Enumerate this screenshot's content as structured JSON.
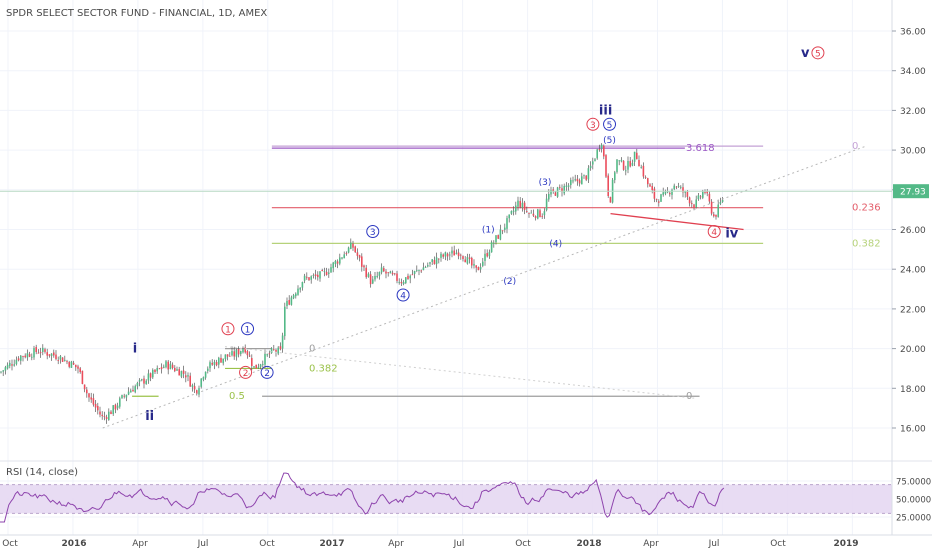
{
  "header": {
    "symbol_title": "SPDR SELECT SECTOR FUND - FINANCIAL, 1D, AMEX"
  },
  "rsi": {
    "title": "RSI (14, close)",
    "axis_ticks": [
      "75.0000",
      "50.0000",
      "25.0000"
    ],
    "levels": [
      75,
      50,
      25
    ],
    "band": [
      30,
      70
    ]
  },
  "chart_data": {
    "type": "candlestick",
    "title": "SPDR SELECT SECTOR FUND - FINANCIAL, 1D, AMEX",
    "x_ticks": [
      "Oct",
      "2016",
      "Apr",
      "Jul",
      "Oct",
      "2017",
      "Apr",
      "Jul",
      "Oct",
      "2018",
      "Apr",
      "Jul",
      "Oct",
      "2019"
    ],
    "y_ticks": [
      "36.00",
      "34.00",
      "32.00",
      "30.00",
      "28.00",
      "26.00",
      "24.00",
      "22.00",
      "20.00",
      "18.00",
      "16.00"
    ],
    "ylim": [
      15.0,
      37.0
    ],
    "last_price": "27.93",
    "colors": {
      "up": "#53b987",
      "down": "#eb4d5c",
      "price_label_bg": "#53b987"
    },
    "price_path": [
      [
        0,
        18.8
      ],
      [
        2,
        19.6
      ],
      [
        4,
        19.9
      ],
      [
        6,
        19.6
      ],
      [
        8,
        19.0
      ],
      [
        9,
        17.6
      ],
      [
        10.5,
        16.5
      ],
      [
        11.5,
        16.9
      ],
      [
        13,
        17.8
      ],
      [
        15,
        18.5
      ],
      [
        17,
        19.2
      ],
      [
        19,
        18.7
      ],
      [
        20,
        17.8
      ],
      [
        21,
        19.0
      ],
      [
        23,
        19.6
      ],
      [
        24,
        19.7
      ],
      [
        25,
        20.1
      ],
      [
        26,
        19.0
      ],
      [
        27,
        19.5
      ],
      [
        28,
        19.9
      ],
      [
        28.8,
        19.8
      ],
      [
        29,
        22.0
      ],
      [
        31,
        23.5
      ],
      [
        33,
        23.7
      ],
      [
        35,
        24.7
      ],
      [
        36,
        25.2
      ],
      [
        37,
        24.2
      ],
      [
        38,
        23.3
      ],
      [
        39,
        23.9
      ],
      [
        41,
        23.4
      ],
      [
        43,
        24.0
      ],
      [
        45,
        24.6
      ],
      [
        47,
        24.9
      ],
      [
        48,
        24.3
      ],
      [
        48.7,
        23.9
      ],
      [
        50,
        25.0
      ],
      [
        52,
        26.5
      ],
      [
        53,
        27.4
      ],
      [
        54,
        26.8
      ],
      [
        55.5,
        26.8
      ],
      [
        56,
        27.7
      ],
      [
        58,
        28.2
      ],
      [
        60,
        28.7
      ],
      [
        61.5,
        30.5
      ],
      [
        62.3,
        27.3
      ],
      [
        63,
        29.5
      ],
      [
        64,
        29.1
      ],
      [
        65,
        29.8
      ],
      [
        66,
        28.5
      ],
      [
        67,
        27.5
      ],
      [
        68,
        27.7
      ],
      [
        69,
        28.3
      ],
      [
        70,
        27.8
      ],
      [
        71,
        27.2
      ],
      [
        72,
        28.0
      ],
      [
        73,
        26.6
      ],
      [
        74,
        27.7
      ]
    ],
    "horizontal_levels": [
      {
        "label": "0",
        "value": 30.2,
        "color": "#c4a2d6",
        "x_from": 14.5,
        "x_to": 78
      },
      {
        "label": "3.618",
        "value": 30.1,
        "color": "#9c58c4",
        "x_from": 14.5,
        "x_to": 70
      },
      {
        "label": "0.236",
        "value": 27.1,
        "color": "#e35d6a",
        "x_from": 14.5,
        "x_to": 78
      },
      {
        "label": "0.382",
        "value": 25.3,
        "color": "#b6d27a",
        "x_from": 14.5,
        "x_to": 78
      },
      {
        "label": "0",
        "value": 20.0,
        "color": "#9e9e9e",
        "x_from": 14.5,
        "x_to": 23
      },
      {
        "label": "0.382",
        "value": 19.0,
        "color": "#9bc24a",
        "x_from": 14.5,
        "x_to": 23
      },
      {
        "label": "0.5",
        "value": 17.6,
        "color": "#9bc24a",
        "x_from": 6.5,
        "x_to": 13.5
      },
      {
        "label": "0",
        "value": 17.6,
        "color": "#9e9e9e",
        "x_from": 13.5,
        "x_to": 71.5
      }
    ],
    "grey_top_line": {
      "value": 20.0,
      "x_from": 6.5,
      "x_to": 23
    },
    "trend_lines": [
      {
        "from": [
          62.4,
          26.8
        ],
        "to": [
          76,
          26.0
        ],
        "color": "#e04050",
        "width": 1.3
      },
      {
        "from": [
          10.5,
          16.0
        ],
        "to": [
          88.5,
          30.2
        ],
        "color": "#b8b8b8",
        "width": 1,
        "dash": "2,3"
      },
      {
        "from": [
          23,
          20.1
        ],
        "to": [
          71,
          17.5
        ],
        "color": "#d0d0d0",
        "width": 1,
        "dash": "2,3"
      }
    ],
    "wave_labels": [
      {
        "text": "i",
        "x": 13.8,
        "y": 20.0,
        "color": "#27298a",
        "style": "roman"
      },
      {
        "text": "ii",
        "x": 15.3,
        "y": 16.6,
        "color": "#27298a",
        "style": "roman"
      },
      {
        "text": "iii",
        "x": 61.9,
        "y": 32.0,
        "color": "#27298a",
        "style": "roman"
      },
      {
        "text": "iv",
        "x": 74.8,
        "y": 25.8,
        "color": "#27298a",
        "style": "roman"
      },
      {
        "text": "v",
        "x": 82.3,
        "y": 34.9,
        "color": "#27298a",
        "style": "roman"
      },
      {
        "text": "1",
        "x": 23.3,
        "y": 21.0,
        "color": "#e04050",
        "style": "circle"
      },
      {
        "text": "2",
        "x": 25.1,
        "y": 18.8,
        "color": "#e04050",
        "style": "circle"
      },
      {
        "text": "3",
        "x": 60.6,
        "y": 31.3,
        "color": "#e04050",
        "style": "circle"
      },
      {
        "text": "4",
        "x": 73.0,
        "y": 25.9,
        "color": "#e04050",
        "style": "circle"
      },
      {
        "text": "5",
        "x": 83.6,
        "y": 34.9,
        "color": "#e04050",
        "style": "circle"
      },
      {
        "text": "1",
        "x": 25.3,
        "y": 21.0,
        "color": "#2b37c0",
        "style": "circle"
      },
      {
        "text": "2",
        "x": 27.3,
        "y": 18.8,
        "color": "#2b37c0",
        "style": "circle"
      },
      {
        "text": "3",
        "x": 38.1,
        "y": 25.9,
        "color": "#2b37c0",
        "style": "circle"
      },
      {
        "text": "4",
        "x": 41.2,
        "y": 22.7,
        "color": "#2b37c0",
        "style": "circle"
      },
      {
        "text": "5",
        "x": 62.3,
        "y": 31.3,
        "color": "#2b37c0",
        "style": "circle"
      },
      {
        "text": "(1)",
        "x": 49.9,
        "y": 26.0,
        "color": "#2b37c0",
        "style": "paren"
      },
      {
        "text": "(2)",
        "x": 52.1,
        "y": 23.4,
        "color": "#2b37c0",
        "style": "paren"
      },
      {
        "text": "(3)",
        "x": 55.7,
        "y": 28.4,
        "color": "#2b37c0",
        "style": "paren"
      },
      {
        "text": "(4)",
        "x": 56.8,
        "y": 25.3,
        "color": "#2b37c0",
        "style": "paren"
      },
      {
        "text": "(5)",
        "x": 62.3,
        "y": 30.5,
        "color": "#2b37c0",
        "style": "paren"
      }
    ]
  }
}
